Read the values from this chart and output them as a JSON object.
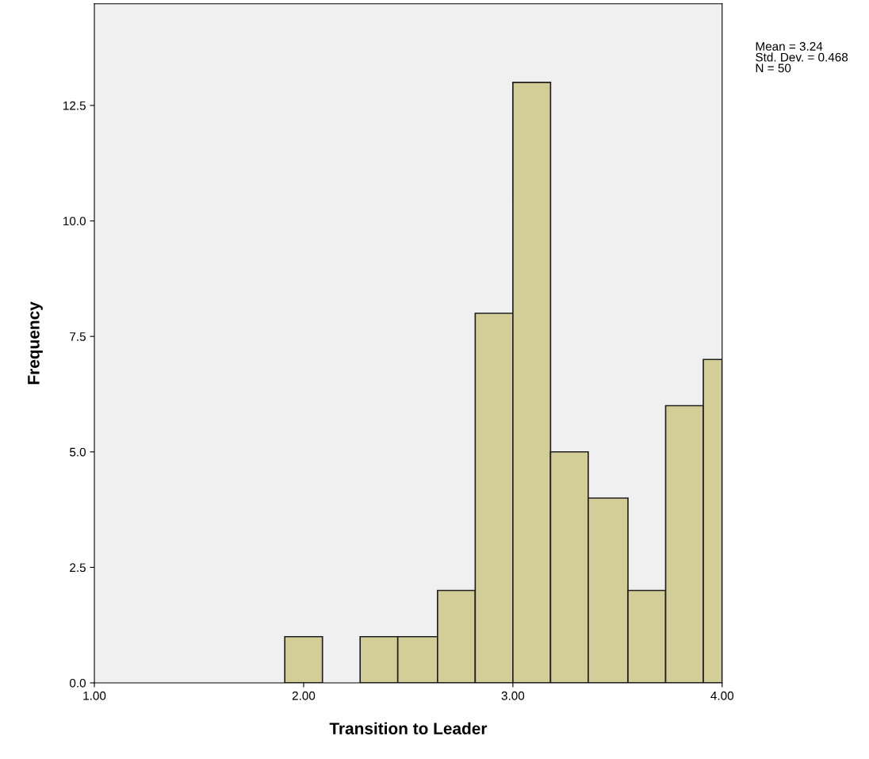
{
  "chart_data": {
    "type": "histogram",
    "xlabel": "Transition to Leader",
    "ylabel": "Frequency",
    "bins": [
      1.91,
      2.09,
      2.27,
      2.45,
      2.64,
      2.82,
      3.0,
      3.18,
      3.36,
      3.55,
      3.73,
      3.91,
      4.0
    ],
    "values": [
      1,
      0,
      1,
      1,
      2,
      8,
      13,
      5,
      4,
      2,
      6,
      7
    ],
    "color": "#d3ce97",
    "xlim": [
      1.0,
      4.0
    ],
    "xticks": [
      {
        "value": 1,
        "label": "1.00"
      },
      {
        "value": 2,
        "label": "2.00"
      },
      {
        "value": 3,
        "label": "3.00"
      },
      {
        "value": 4,
        "label": "4.00"
      }
    ],
    "ylim": [
      0,
      14.7
    ],
    "yticks": [
      {
        "value": 0,
        "label": "0.0"
      },
      {
        "value": 2.5,
        "label": "2.5"
      },
      {
        "value": 5,
        "label": "5.0"
      },
      {
        "value": 7.5,
        "label": "7.5"
      },
      {
        "value": 10,
        "label": "10.0"
      },
      {
        "value": 12.5,
        "label": "12.5"
      }
    ],
    "grid": false,
    "annotations": [
      "Mean = 3.24\nStd. Dev. = 0.468\nN = 50"
    ]
  }
}
